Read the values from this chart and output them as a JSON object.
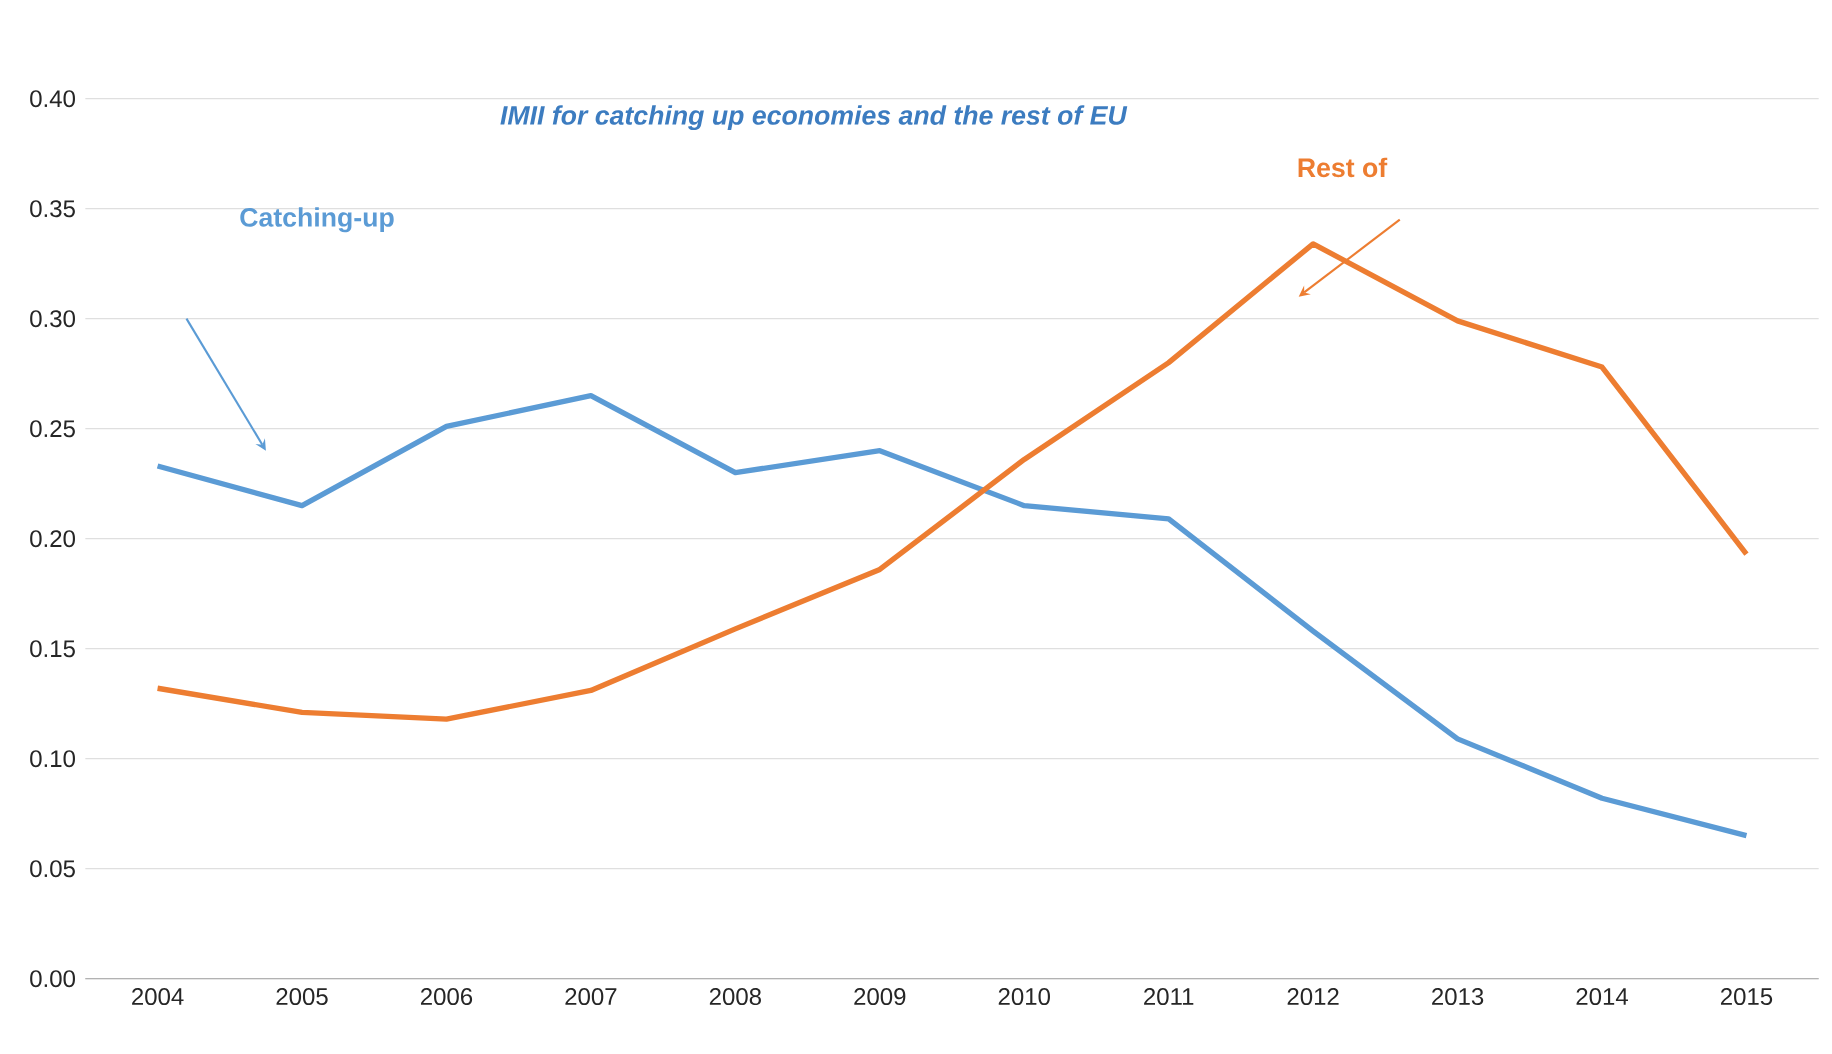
{
  "chart_data": {
    "type": "line",
    "title": "IMII for catching up economies and the rest of EU",
    "categories": [
      "2004",
      "2005",
      "2006",
      "2007",
      "2008",
      "2009",
      "2010",
      "2011",
      "2012",
      "2013",
      "2014",
      "2015"
    ],
    "series": [
      {
        "name": "Catching-up",
        "color": "#5b9bd5",
        "values": [
          0.233,
          0.215,
          0.251,
          0.265,
          0.23,
          0.24,
          0.215,
          0.209,
          0.158,
          0.109,
          0.082,
          0.065
        ]
      },
      {
        "name": "Rest of",
        "color": "#ed7d31",
        "values": [
          0.132,
          0.121,
          0.118,
          0.131,
          0.159,
          0.186,
          0.236,
          0.28,
          0.334,
          0.299,
          0.278,
          0.193
        ]
      }
    ],
    "ylim": [
      0,
      0.4
    ],
    "yticks": [
      {
        "value": 0,
        "label": "0.00"
      },
      {
        "value": 0.05,
        "label": "0.05"
      },
      {
        "value": 0.1,
        "label": "0.10"
      },
      {
        "value": 0.15,
        "label": "0.15"
      },
      {
        "value": 0.2,
        "label": "0.20"
      },
      {
        "value": 0.25,
        "label": "0.25"
      },
      {
        "value": 0.3,
        "label": "0.30"
      },
      {
        "value": 0.35,
        "label": "0.35"
      },
      {
        "value": 0.4,
        "label": "0.40"
      }
    ],
    "grid": "y",
    "legend": false,
    "marker": "none",
    "line_style": "solid"
  }
}
